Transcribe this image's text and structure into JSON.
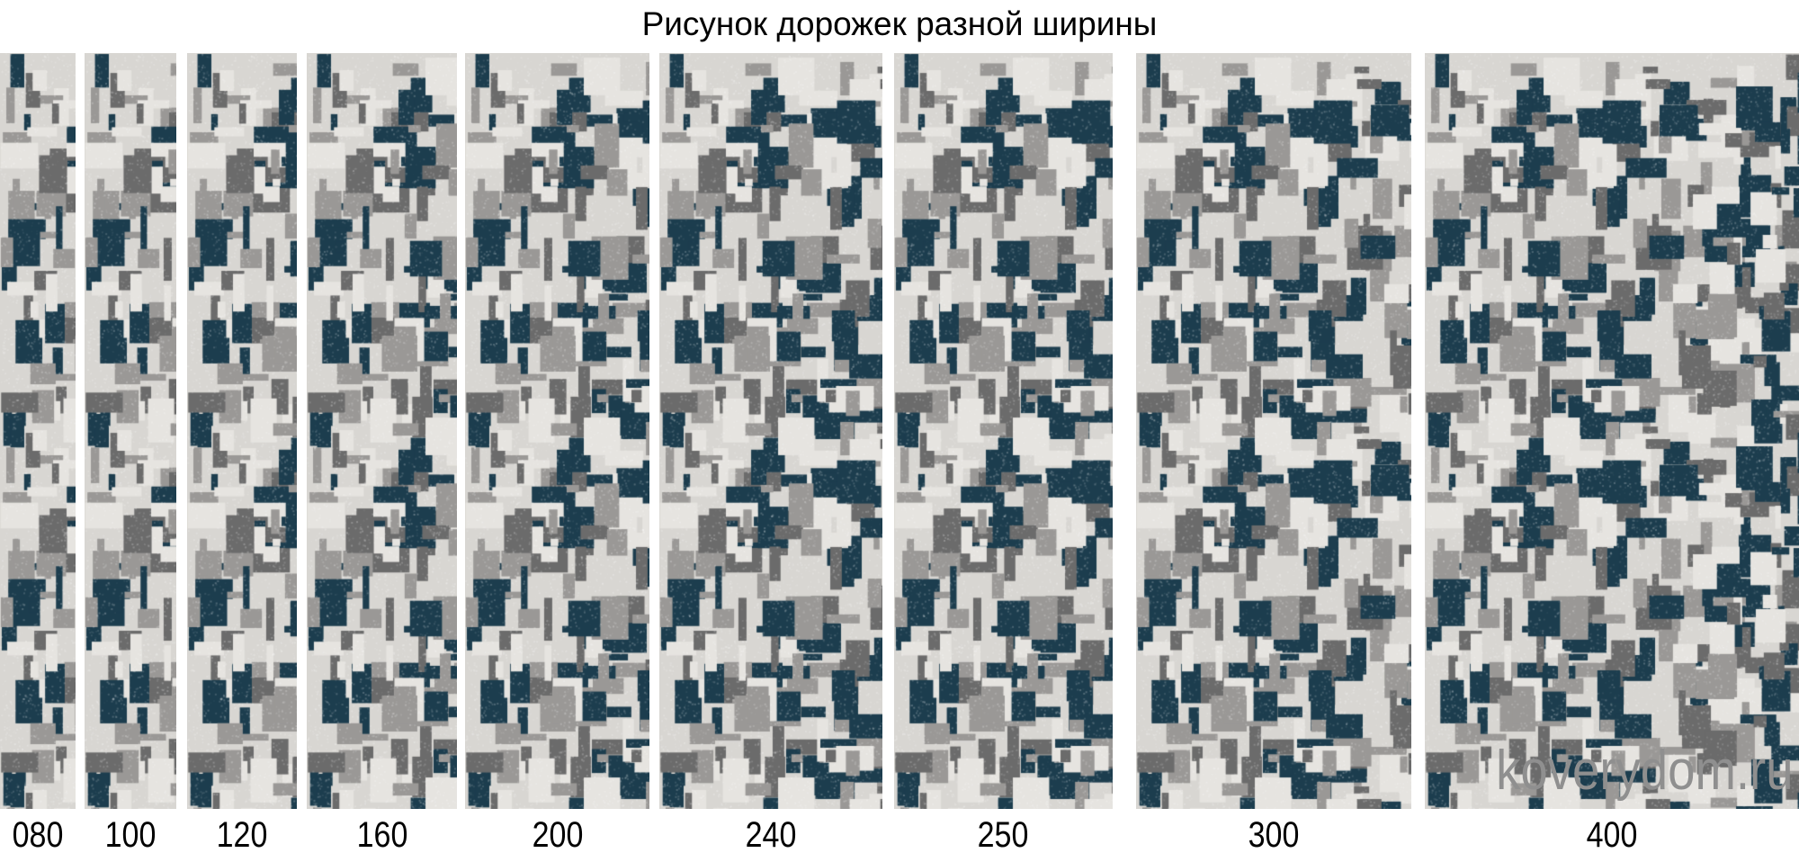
{
  "title": "Рисунок дорожек разной ширины",
  "watermark": "koverydom.ru",
  "colors": {
    "base": "#d8d6d2",
    "dark_teal": "#1c3d4e",
    "gray": "#6b6b6b",
    "mid_gray": "#9a9896"
  },
  "panels": [
    {
      "label": "080"
    },
    {
      "label": "100"
    },
    {
      "label": "120"
    },
    {
      "label": "160"
    },
    {
      "label": "200"
    },
    {
      "label": "240"
    },
    {
      "label": "250"
    },
    {
      "label": "300"
    },
    {
      "label": "400"
    }
  ]
}
